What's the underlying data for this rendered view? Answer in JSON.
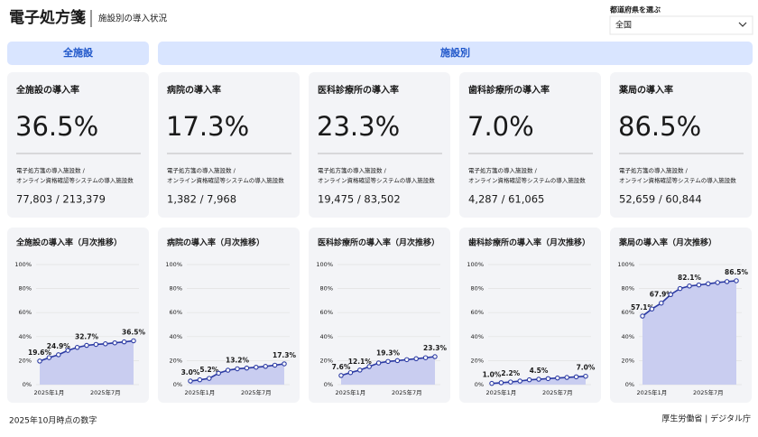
{
  "header": {
    "title": "電子処方箋",
    "subtitle": "施設別の導入状況"
  },
  "filter": {
    "label": "都道府県を選ぶ",
    "value": "全国"
  },
  "sections": [
    "全施設",
    "施設別"
  ],
  "cards": [
    {
      "title": "全施設の導入率",
      "rate": "36.5%",
      "caption": [
        "電子処方箋の導入施設数 /",
        "オンライン資格確認等システムの導入施設数"
      ],
      "count": "77,803 / 213,379"
    },
    {
      "title": "病院の導入率",
      "rate": "17.3%",
      "caption": [
        "電子処方箋の導入施設数 /",
        "オンライン資格確認等システムの導入施設数"
      ],
      "count": "1,382 / 7,968"
    },
    {
      "title": "医科診療所の導入率",
      "rate": "23.3%",
      "caption": [
        "電子処方箋の導入施設数 /",
        "オンライン資格確認等システムの導入施設数"
      ],
      "count": "19,475 / 83,502"
    },
    {
      "title": "歯科診療所の導入率",
      "rate": "7.0%",
      "caption": [
        "電子処方箋の導入施設数 /",
        "オンライン資格確認等システムの導入施設数"
      ],
      "count": "4,287 / 61,065"
    },
    {
      "title": "薬局の導入率",
      "rate": "86.5%",
      "caption": [
        "電子処方箋の導入施設数 /",
        "オンライン資格確認等システムの導入施設数"
      ],
      "count": "52,659 / 60,844"
    }
  ],
  "chart_data": [
    {
      "type": "area",
      "title": "全施設の導入率（月次推移）",
      "categories": [
        null,
        "2025年1月",
        null,
        null,
        null,
        null,
        null,
        "2025年7月",
        null,
        null,
        null
      ],
      "values": [
        19.6,
        22.5,
        24.9,
        28.5,
        31,
        32.7,
        33.5,
        34,
        34.8,
        35.6,
        36.5
      ],
      "value_labels": [
        "19.6%",
        null,
        "24.9%",
        null,
        null,
        "32.7%",
        null,
        null,
        null,
        null,
        "36.5%"
      ],
      "color": "#2b3aa3",
      "fill": "#c9cdf0",
      "ylim": [
        0,
        100
      ],
      "yticks": [
        {
          "value": 0,
          "label": "0%"
        },
        {
          "value": 20,
          "label": "20%"
        },
        {
          "value": 40,
          "label": "40%"
        },
        {
          "value": 60,
          "label": "60%"
        },
        {
          "value": 80,
          "label": "80%"
        },
        {
          "value": 100,
          "label": "100%"
        }
      ],
      "grid": true
    },
    {
      "type": "area",
      "title": "病院の導入率（月次推移）",
      "categories": [
        null,
        "2025年1月",
        null,
        null,
        null,
        null,
        null,
        "2025年7月",
        null,
        null,
        null
      ],
      "values": [
        3.0,
        4.0,
        5.2,
        9.5,
        12,
        13.2,
        13.8,
        14.5,
        15.2,
        16.2,
        17.3
      ],
      "value_labels": [
        "3.0%",
        null,
        "5.2%",
        null,
        null,
        "13.2%",
        null,
        null,
        null,
        null,
        "17.3%"
      ],
      "color": "#2b3aa3",
      "fill": "#c9cdf0",
      "ylim": [
        0,
        100
      ],
      "yticks": [
        {
          "value": 0,
          "label": "0%"
        },
        {
          "value": 20,
          "label": "20%"
        },
        {
          "value": 40,
          "label": "40%"
        },
        {
          "value": 60,
          "label": "60%"
        },
        {
          "value": 80,
          "label": "80%"
        },
        {
          "value": 100,
          "label": "100%"
        }
      ],
      "grid": true
    },
    {
      "type": "area",
      "title": "医科診療所の導入率（月次推移）",
      "categories": [
        null,
        "2025年1月",
        null,
        null,
        null,
        null,
        null,
        "2025年7月",
        null,
        null,
        null
      ],
      "values": [
        7.6,
        10,
        12.1,
        15,
        18,
        19.3,
        20,
        20.8,
        21.6,
        22.4,
        23.3
      ],
      "value_labels": [
        "7.6%",
        null,
        "12.1%",
        null,
        null,
        "19.3%",
        null,
        null,
        null,
        null,
        "23.3%"
      ],
      "color": "#2b3aa3",
      "fill": "#c9cdf0",
      "ylim": [
        0,
        100
      ],
      "yticks": [
        {
          "value": 0,
          "label": "0%"
        },
        {
          "value": 20,
          "label": "20%"
        },
        {
          "value": 40,
          "label": "40%"
        },
        {
          "value": 60,
          "label": "60%"
        },
        {
          "value": 80,
          "label": "80%"
        },
        {
          "value": 100,
          "label": "100%"
        }
      ],
      "grid": true
    },
    {
      "type": "area",
      "title": "歯科診療所の導入率（月次推移）",
      "categories": [
        null,
        "2025年1月",
        null,
        null,
        null,
        null,
        null,
        "2025年7月",
        null,
        null,
        null
      ],
      "values": [
        1.0,
        1.6,
        2.2,
        3,
        4,
        4.5,
        5,
        5.5,
        6,
        6.5,
        7.0
      ],
      "value_labels": [
        "1.0%",
        null,
        "2.2%",
        null,
        null,
        "4.5%",
        null,
        null,
        null,
        null,
        "7.0%"
      ],
      "color": "#2b3aa3",
      "fill": "#c9cdf0",
      "ylim": [
        0,
        100
      ],
      "yticks": [
        {
          "value": 0,
          "label": "0%"
        },
        {
          "value": 20,
          "label": "20%"
        },
        {
          "value": 40,
          "label": "40%"
        },
        {
          "value": 60,
          "label": "60%"
        },
        {
          "value": 80,
          "label": "80%"
        },
        {
          "value": 100,
          "label": "100%"
        }
      ],
      "grid": true
    },
    {
      "type": "area",
      "title": "薬局の導入率（月次推移）",
      "categories": [
        null,
        "2025年1月",
        null,
        null,
        null,
        null,
        null,
        "2025年7月",
        null,
        null,
        null
      ],
      "values": [
        57.1,
        63,
        67.9,
        75,
        80,
        82.1,
        83,
        84,
        85,
        85.8,
        86.5
      ],
      "value_labels": [
        "57.1%",
        null,
        "67.9%",
        null,
        null,
        "82.1%",
        null,
        null,
        null,
        null,
        "86.5%"
      ],
      "color": "#2b3aa3",
      "fill": "#c9cdf0",
      "ylim": [
        0,
        100
      ],
      "yticks": [
        {
          "value": 0,
          "label": "0%"
        },
        {
          "value": 20,
          "label": "20%"
        },
        {
          "value": 40,
          "label": "40%"
        },
        {
          "value": 60,
          "label": "60%"
        },
        {
          "value": 80,
          "label": "80%"
        },
        {
          "value": 100,
          "label": "100%"
        }
      ],
      "grid": true
    }
  ],
  "footer": {
    "note": "2025年10月時点の数字",
    "source": "厚生労働省 | デジタル庁"
  }
}
